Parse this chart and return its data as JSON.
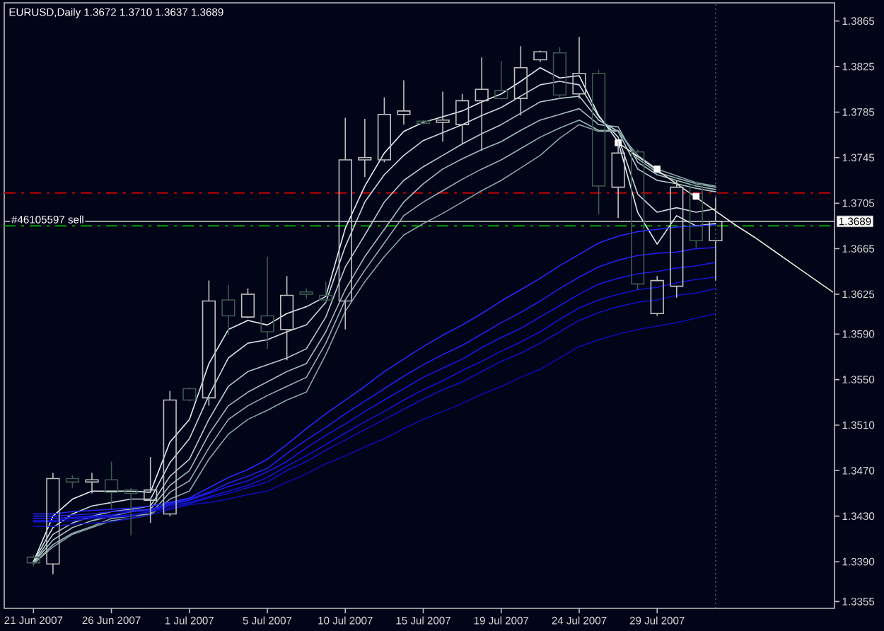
{
  "chart_data": {
    "type": "candlestick",
    "title": "EURUSD,Daily 1.3672 1.3710 1.3637 1.3689",
    "categories": [
      "21 Jun 2007",
      null,
      null,
      null,
      "26 Jun 2007",
      null,
      null,
      null,
      "1 Jul 2007",
      null,
      null,
      null,
      "5 Jul 2007",
      null,
      null,
      null,
      "10 Jul 2007",
      null,
      null,
      null,
      "15 Jul 2007",
      null,
      null,
      null,
      "19 Jul 2007",
      null,
      null,
      null,
      "24 Jul 2007",
      null,
      null,
      null,
      "29 Jul 2007",
      null,
      null,
      null,
      null,
      null,
      null,
      null,
      null,
      null
    ],
    "ohlc": [
      [
        1.3394,
        1.3396,
        1.3386,
        1.3389
      ],
      [
        1.3388,
        1.3468,
        1.3379,
        1.3463
      ],
      [
        1.3463,
        1.3466,
        1.3455,
        1.346
      ],
      [
        1.346,
        1.3468,
        1.345,
        1.3462
      ],
      [
        1.3462,
        1.3478,
        1.3436,
        1.3451
      ],
      [
        1.3453,
        1.3455,
        1.3413,
        1.345
      ],
      [
        1.3444,
        1.3482,
        1.3424,
        1.3453
      ],
      [
        1.3432,
        1.354,
        1.343,
        1.3532
      ],
      [
        1.3542,
        1.3543,
        1.3531,
        1.3532
      ],
      [
        1.3534,
        1.3637,
        1.3527,
        1.3619
      ],
      [
        1.362,
        1.3633,
        1.3589,
        1.3606
      ],
      [
        1.3605,
        1.363,
        1.3604,
        1.3625
      ],
      [
        1.3606,
        1.3658,
        1.3577,
        1.3592
      ],
      [
        1.3594,
        1.3641,
        1.3567,
        1.3624
      ],
      [
        1.3627,
        1.363,
        1.3621,
        1.3625
      ],
      [
        1.3624,
        1.3636,
        1.3618,
        1.362
      ],
      [
        1.3619,
        1.378,
        1.3594,
        1.3743
      ],
      [
        1.3743,
        1.3779,
        1.3728,
        1.3745
      ],
      [
        1.3743,
        1.3798,
        1.3741,
        1.3783
      ],
      [
        1.3783,
        1.3813,
        1.3774,
        1.3786
      ],
      [
        1.3777,
        1.3778,
        1.3774,
        1.3775
      ],
      [
        1.3776,
        1.3803,
        1.3759,
        1.3778
      ],
      [
        1.3774,
        1.3801,
        1.3757,
        1.3795
      ],
      [
        1.3795,
        1.3833,
        1.3751,
        1.3805
      ],
      [
        1.3804,
        1.383,
        1.3796,
        1.3797
      ],
      [
        1.3797,
        1.3843,
        1.3782,
        1.3824
      ],
      [
        1.3831,
        1.3839,
        1.3829,
        1.3838
      ],
      [
        1.3837,
        1.3842,
        1.3797,
        1.38
      ],
      [
        1.3801,
        1.3851,
        1.3797,
        1.3819
      ],
      [
        1.3819,
        1.3822,
        1.3695,
        1.372
      ],
      [
        1.3719,
        1.3759,
        1.3692,
        1.3749
      ],
      [
        1.375,
        1.3752,
        1.3629,
        1.3634
      ],
      [
        1.3608,
        1.3641,
        1.3606,
        1.3637
      ],
      [
        1.3632,
        1.3725,
        1.3622,
        1.3719
      ],
      [
        1.3721,
        1.3724,
        1.3666,
        1.3672
      ],
      [
        1.3672,
        1.371,
        1.3637,
        1.3689
      ],
      null,
      null,
      null,
      null,
      null,
      null
    ],
    "colors": [
      "#3c5a50",
      "#c0c0c0",
      "#3c5a50",
      "#c0c0c0",
      "#3c5a50",
      "#3c5a50",
      "#c0c0c0",
      "#c0c0c0",
      "#3c5a50",
      "#c0c0c0",
      "#3c5a50",
      "#c0c0c0",
      "#3c5a50",
      "#c0c0c0",
      "#3c5a50",
      "#3c5a50",
      "#c0c0c0",
      "#c0c0c0",
      "#c0c0c0",
      "#c0c0c0",
      "#3c5a50",
      "#c0c0c0",
      "#c0c0c0",
      "#c0c0c0",
      "#3c5a50",
      "#c0c0c0",
      "#c0c0c0",
      "#3c5a50",
      "#c0c0c0",
      "#3c5a50",
      "#c0c0c0",
      "#3c5a50",
      "#c0c0c0",
      "#c0c0c0",
      "#3c5a50",
      "#c0c0c0",
      null,
      null,
      null,
      null,
      null,
      null
    ],
    "series": [
      {
        "type": "line",
        "color": "#e0f0f0",
        "values": [
          1.339,
          1.343,
          1.3445,
          1.3452,
          1.3452,
          1.3452,
          1.3451,
          1.3495,
          1.3515,
          1.3564,
          1.3594,
          1.3602,
          1.3598,
          1.3608,
          1.3614,
          1.3623,
          1.3683,
          1.372,
          1.3749,
          1.3768,
          1.3776,
          1.3781,
          1.3786,
          1.3794,
          1.3801,
          1.3812,
          1.3824,
          1.3815,
          1.3817,
          1.3782,
          1.3759,
          1.3697,
          1.3669,
          1.3694,
          1.3685,
          1.3687,
          null,
          null,
          null,
          null,
          null,
          null
        ]
      },
      {
        "type": "line",
        "color": "#c8dcdc",
        "values": [
          1.339,
          1.342,
          1.3432,
          1.3439,
          1.3442,
          1.3445,
          1.3445,
          1.3477,
          1.3498,
          1.3536,
          1.3569,
          1.3582,
          1.3585,
          1.3592,
          1.3598,
          1.3618,
          1.3667,
          1.3706,
          1.373,
          1.3747,
          1.376,
          1.3767,
          1.3774,
          1.3782,
          1.3789,
          1.3799,
          1.3809,
          1.3812,
          1.3809,
          1.3781,
          1.3763,
          1.3713,
          1.3697,
          1.3701,
          1.3697,
          1.37,
          null,
          null,
          null,
          null,
          null,
          null
        ]
      },
      {
        "type": "line",
        "color": "#b4cccc",
        "values": [
          1.3389,
          1.3414,
          1.3424,
          1.343,
          1.3434,
          1.3436,
          1.3439,
          1.3465,
          1.348,
          1.3515,
          1.3544,
          1.3557,
          1.3563,
          1.3569,
          1.3577,
          1.3605,
          1.3649,
          1.3677,
          1.3706,
          1.3725,
          1.3737,
          1.3747,
          1.3757,
          1.3766,
          1.3774,
          1.3784,
          1.3794,
          1.3797,
          1.3799,
          1.3778,
          1.3768,
          1.3735,
          1.3725,
          1.3722,
          1.3718,
          1.3715,
          null,
          null,
          null,
          null,
          null,
          null
        ]
      },
      {
        "type": "line",
        "color": "#a0bcbc",
        "values": [
          1.3389,
          1.3409,
          1.342,
          1.3426,
          1.343,
          1.3434,
          1.3436,
          1.3457,
          1.347,
          1.3502,
          1.3527,
          1.3539,
          1.3548,
          1.3557,
          1.3564,
          1.3592,
          1.3629,
          1.3658,
          1.3682,
          1.3706,
          1.3722,
          1.3735,
          1.3744,
          1.3752,
          1.3759,
          1.3769,
          1.3778,
          1.3783,
          1.3788,
          1.3774,
          1.3772,
          1.3741,
          1.373,
          1.3725,
          1.372,
          1.3717,
          null,
          null,
          null,
          null,
          null,
          null
        ]
      },
      {
        "type": "line",
        "color": "#94b0b0",
        "values": [
          1.3388,
          1.3405,
          1.3415,
          1.3421,
          1.3428,
          1.343,
          1.3432,
          1.3451,
          1.3461,
          1.349,
          1.3515,
          1.3527,
          1.3536,
          1.3544,
          1.3552,
          1.3582,
          1.362,
          1.3646,
          1.367,
          1.3694,
          1.3706,
          1.3716,
          1.3726,
          1.3735,
          1.3743,
          1.3753,
          1.3763,
          1.3771,
          1.3778,
          1.3769,
          1.3769,
          1.3744,
          1.3732,
          1.3727,
          1.3722,
          1.3719,
          null,
          null,
          null,
          null,
          null,
          null
        ]
      },
      {
        "type": "line",
        "color": "#88a4a4",
        "values": [
          1.3388,
          1.3403,
          1.3414,
          1.342,
          1.3426,
          1.3428,
          1.3431,
          1.3445,
          1.3452,
          1.348,
          1.3502,
          1.3515,
          1.3523,
          1.3532,
          1.3539,
          1.3572,
          1.361,
          1.3636,
          1.3658,
          1.3677,
          1.3687,
          1.3696,
          1.3706,
          1.3716,
          1.3725,
          1.3736,
          1.3747,
          1.3762,
          1.3774,
          1.3768,
          1.3768,
          1.3747,
          1.3735,
          1.3729,
          1.3723,
          1.372,
          null,
          null,
          null,
          null,
          null,
          null
        ]
      },
      {
        "type": "line",
        "color": "#2828ff",
        "values": [
          1.3432,
          1.3432,
          1.3434,
          1.3435,
          1.3436,
          1.3437,
          1.3439,
          1.3442,
          1.3446,
          1.3455,
          1.3464,
          1.3471,
          1.348,
          1.3493,
          1.3507,
          1.352,
          1.3532,
          1.3544,
          1.3557,
          1.3568,
          1.3579,
          1.3589,
          1.3598,
          1.3608,
          1.3619,
          1.3629,
          1.3639,
          1.365,
          1.366,
          1.367,
          1.3676,
          1.368,
          1.3682,
          1.3684,
          1.3685,
          1.3686,
          null,
          null,
          null,
          null,
          null,
          null
        ]
      },
      {
        "type": "line",
        "color": "#2020f0",
        "values": [
          1.343,
          1.343,
          1.3431,
          1.3432,
          1.3434,
          1.3435,
          1.3436,
          1.3441,
          1.3445,
          1.3451,
          1.3459,
          1.3465,
          1.3472,
          1.3485,
          1.3497,
          1.3508,
          1.352,
          1.3531,
          1.3542,
          1.3553,
          1.3563,
          1.3572,
          1.358,
          1.359,
          1.36,
          1.3609,
          1.3619,
          1.363,
          1.364,
          1.3649,
          1.3655,
          1.3659,
          1.3661,
          1.3662,
          1.3665,
          1.3666,
          null,
          null,
          null,
          null,
          null,
          null
        ]
      },
      {
        "type": "line",
        "color": "#1818e0",
        "values": [
          1.3428,
          1.3428,
          1.3429,
          1.343,
          1.3431,
          1.3434,
          1.3435,
          1.344,
          1.3444,
          1.345,
          1.3456,
          1.3461,
          1.3469,
          1.3478,
          1.349,
          1.3501,
          1.3511,
          1.3522,
          1.3532,
          1.3542,
          1.3552,
          1.356,
          1.3568,
          1.3578,
          1.3587,
          1.3595,
          1.3605,
          1.3615,
          1.3625,
          1.3634,
          1.3639,
          1.3643,
          1.3645,
          1.3648,
          1.365,
          1.3653,
          null,
          null,
          null,
          null,
          null,
          null
        ]
      },
      {
        "type": "line",
        "color": "#1414d0",
        "values": [
          1.3426,
          1.3426,
          1.3428,
          1.3429,
          1.343,
          1.3431,
          1.3434,
          1.3439,
          1.3442,
          1.3447,
          1.3452,
          1.3457,
          1.3464,
          1.3474,
          1.3483,
          1.3493,
          1.3503,
          1.3513,
          1.3522,
          1.3532,
          1.3541,
          1.3549,
          1.3558,
          1.3566,
          1.3575,
          1.3583,
          1.3592,
          1.3603,
          1.3613,
          1.362,
          1.3625,
          1.3629,
          1.3631,
          1.3635,
          1.3638,
          1.364,
          null,
          null,
          null,
          null,
          null,
          null
        ]
      },
      {
        "type": "line",
        "color": "#1010c0",
        "values": [
          1.3425,
          1.3425,
          1.3426,
          1.3428,
          1.3429,
          1.343,
          1.3434,
          1.3437,
          1.3441,
          1.3446,
          1.345,
          1.3455,
          1.346,
          1.347,
          1.3478,
          1.3488,
          1.3497,
          1.3506,
          1.3515,
          1.3524,
          1.3533,
          1.3541,
          1.3548,
          1.3557,
          1.3566,
          1.3573,
          1.3582,
          1.3592,
          1.3602,
          1.3609,
          1.3614,
          1.3618,
          1.362,
          1.3624,
          1.3626,
          1.363,
          null,
          null,
          null,
          null,
          null,
          null
        ]
      },
      {
        "type": "line",
        "color": "#0c0cb0",
        "values": [
          1.3421,
          1.3421,
          1.3423,
          1.3424,
          1.3425,
          1.3428,
          1.3431,
          1.3436,
          1.344,
          1.3442,
          1.3445,
          1.3449,
          1.3452,
          1.346,
          1.3467,
          1.3476,
          1.3483,
          1.3491,
          1.3498,
          1.3507,
          1.3515,
          1.3522,
          1.3529,
          1.3537,
          1.3544,
          1.3552,
          1.3559,
          1.3569,
          1.3579,
          1.3585,
          1.359,
          1.3594,
          1.3597,
          1.36,
          1.3604,
          1.3608,
          null,
          null,
          null,
          null,
          null,
          null
        ]
      },
      {
        "type": "line",
        "color": "#e8e8dc",
        "values": [
          null,
          null,
          null,
          null,
          null,
          null,
          null,
          null,
          null,
          null,
          null,
          null,
          null,
          null,
          null,
          null,
          null,
          null,
          null,
          null,
          null,
          null,
          null,
          null,
          null,
          null,
          null,
          null,
          null,
          null,
          1.3758,
          1.3746,
          1.3734,
          1.3722,
          1.371,
          1.3698,
          1.3686,
          1.3675,
          1.3663,
          1.3651,
          1.3639,
          1.3627
        ]
      },
      {
        "type": "scatter",
        "color": "#ffffff",
        "marker": "square",
        "values": [
          null,
          null,
          null,
          null,
          null,
          null,
          null,
          null,
          null,
          null,
          null,
          null,
          null,
          null,
          null,
          null,
          null,
          null,
          null,
          null,
          null,
          null,
          null,
          null,
          null,
          null,
          null,
          null,
          null,
          null,
          1.3758,
          null,
          1.3735,
          null,
          1.3711,
          null,
          null,
          null,
          null,
          null,
          null,
          null
        ]
      }
    ],
    "ylim": [
      1.3349,
      1.3881
    ],
    "yticks": [
      1.3865,
      1.3825,
      1.3785,
      1.3745,
      1.3705,
      1.3665,
      1.3625,
      {
        "value": 1.359,
        "label": "1.3590"
      },
      {
        "value": 1.355,
        "label": "1.3550"
      },
      {
        "value": 1.351,
        "label": "1.3510"
      },
      {
        "value": 1.347,
        "label": "1.3470"
      },
      {
        "value": 1.343,
        "label": "1.3430"
      },
      {
        "value": 1.339,
        "label": "1.3390"
      },
      1.3355
    ],
    "ref_lines": [
      {
        "axis": "y",
        "value": 1.3714,
        "color": "#c00000",
        "line_style": "dashdot"
      },
      {
        "axis": "y",
        "value": 1.3685,
        "label": "#46105597 sell",
        "color": "#00a000",
        "line_style": "dashdot"
      },
      {
        "axis": "y",
        "value": 1.3689,
        "label": "1.3689",
        "color": "#a0a0a0",
        "line_style": "solid"
      }
    ]
  }
}
